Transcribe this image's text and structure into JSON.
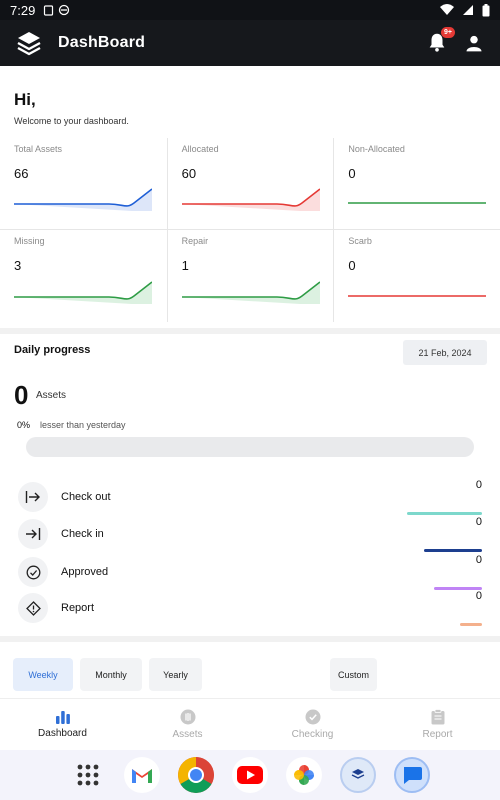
{
  "status_bar": {
    "time": "7:29"
  },
  "app_bar": {
    "title": "DashBoard",
    "notification_badge": "9+"
  },
  "greeting": {
    "title": "Hi,",
    "subtitle": "Welcome to your dashboard."
  },
  "stats": [
    {
      "label": "Total Assets",
      "value": "66",
      "color": "#1f5fd6",
      "trend": "up"
    },
    {
      "label": "Allocated",
      "value": "60",
      "color": "#e53935",
      "trend": "up"
    },
    {
      "label": "Non-Allocated",
      "value": "0",
      "color": "#2e9c45",
      "trend": "flat"
    },
    {
      "label": "Missing",
      "value": "3",
      "color": "#2e9c45",
      "trend": "up"
    },
    {
      "label": "Repair",
      "value": "1",
      "color": "#2e9c45",
      "trend": "up"
    },
    {
      "label": "Scarb",
      "value": "0",
      "color": "#e53935",
      "trend": "flat"
    }
  ],
  "daily_progress": {
    "title": "Daily progress",
    "date": "21 Feb, 2024",
    "count": "0",
    "unit": "Assets",
    "percent": "0%",
    "percent_label": "lesser than yesterday",
    "progress_fraction": 0
  },
  "activities": [
    {
      "label": "Check out",
      "value": "0",
      "icon": "checkout-icon",
      "color": "#7dd8cc"
    },
    {
      "label": "Check in",
      "value": "0",
      "icon": "checkin-icon",
      "color": "#1d3f8f"
    },
    {
      "label": "Approved",
      "value": "0",
      "icon": "approved-icon",
      "color": "#c084f5"
    },
    {
      "label": "Report",
      "value": "0",
      "icon": "report-icon",
      "color": "#f4b08c"
    }
  ],
  "period_filters": [
    "Weekly",
    "Monthly",
    "Yearly",
    "Custom"
  ],
  "active_period": "Weekly",
  "bottom_nav": [
    {
      "label": "Dashboard",
      "icon": "bar-chart-icon",
      "active": true
    },
    {
      "label": "Assets",
      "icon": "assets-icon",
      "active": false
    },
    {
      "label": "Checking",
      "icon": "check-circle-icon",
      "active": false
    },
    {
      "label": "Report",
      "icon": "clipboard-icon",
      "active": false
    }
  ],
  "dock_apps": [
    "app-drawer-icon",
    "gmail-icon",
    "chrome-icon",
    "youtube-icon",
    "photos-icon",
    "asset-app-icon",
    "messages-icon"
  ]
}
